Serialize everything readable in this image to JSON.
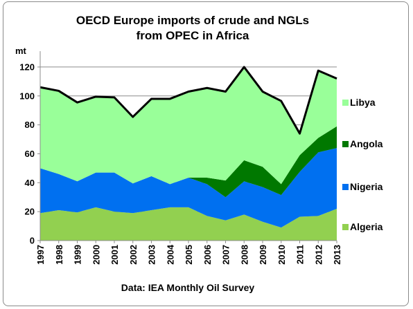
{
  "chart_data": {
    "type": "area",
    "stacked": true,
    "title_lines": [
      "OECD Europe imports of crude and NGLs",
      "from OPEC in Africa"
    ],
    "ylabel": "mt",
    "source": "Data: IEA Monthly Oil Survey",
    "ylim": [
      0,
      130
    ],
    "y_ticks": [
      0,
      20,
      40,
      60,
      80,
      100,
      120
    ],
    "y_tick_labels": [
      "0",
      "20",
      "40",
      "60",
      "80",
      "100",
      "120"
    ],
    "grid": true,
    "categories": [
      "1997",
      "1998",
      "1999",
      "2000",
      "2001",
      "2002",
      "2003",
      "2004",
      "2005",
      "2006",
      "2007",
      "2008",
      "2009",
      "2010",
      "2011",
      "2012",
      "2013"
    ],
    "series": [
      {
        "name": "Algeria",
        "color": "#92d050",
        "values": [
          19,
          21,
          19.5,
          23,
          20,
          19,
          21,
          23,
          23,
          17,
          14,
          18,
          13,
          9,
          16.5,
          17,
          22
        ]
      },
      {
        "name": "Nigeria",
        "color": "#0070f0",
        "values": [
          31,
          25,
          21.5,
          24,
          27,
          20.5,
          23.5,
          16,
          20.5,
          22,
          16,
          23,
          24,
          22.5,
          31,
          44,
          42
        ]
      },
      {
        "name": "Angola",
        "color": "#007800",
        "values": [
          0,
          0,
          0,
          0,
          0,
          0,
          0,
          0,
          0,
          4.5,
          11.5,
          14.5,
          14,
          7.5,
          11.5,
          10,
          15
        ]
      },
      {
        "name": "Libya",
        "color": "#99ff99",
        "values": [
          56,
          57.5,
          54.5,
          52.5,
          52,
          46,
          53.5,
          59,
          59.5,
          62,
          61.5,
          64.5,
          52,
          57.5,
          15,
          46.5,
          33
        ]
      }
    ],
    "total_line": {
      "color": "#000000",
      "values": [
        106,
        103.5,
        95.5,
        99.5,
        99,
        85.5,
        98,
        98,
        103,
        105.5,
        103,
        120,
        103,
        96.5,
        74,
        117.5,
        112
      ]
    },
    "legend_order": [
      "Libya",
      "Angola",
      "Nigeria",
      "Algeria"
    ],
    "legend_placement": "right"
  }
}
